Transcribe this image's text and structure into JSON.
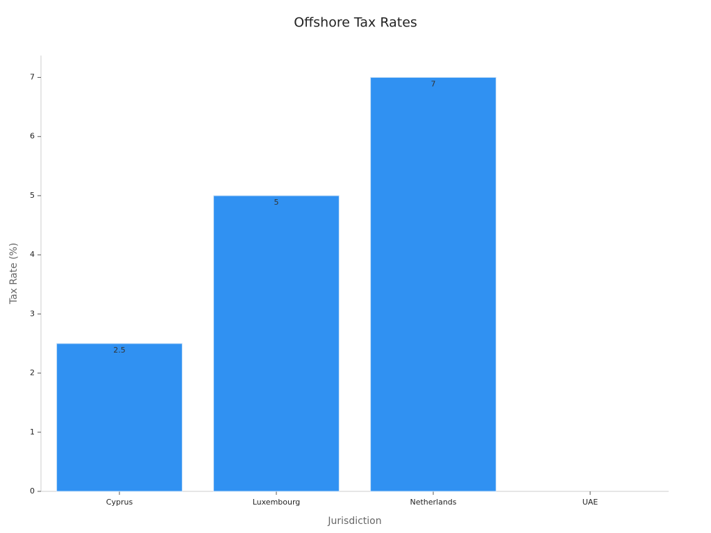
{
  "chart_data": {
    "type": "bar",
    "title": "Offshore Tax Rates",
    "x_label": "Jurisdiction",
    "y_label": "Tax Rate (%)",
    "categories": [
      "Cyprus",
      "Luxembourg",
      "Netherlands",
      "UAE"
    ],
    "values": [
      2.5,
      5,
      7,
      0
    ],
    "color": "#3091f2",
    "ylim": [
      0,
      7.37
    ],
    "yticks": [
      0,
      1,
      2,
      3,
      4,
      5,
      6,
      7
    ],
    "grid": false
  }
}
